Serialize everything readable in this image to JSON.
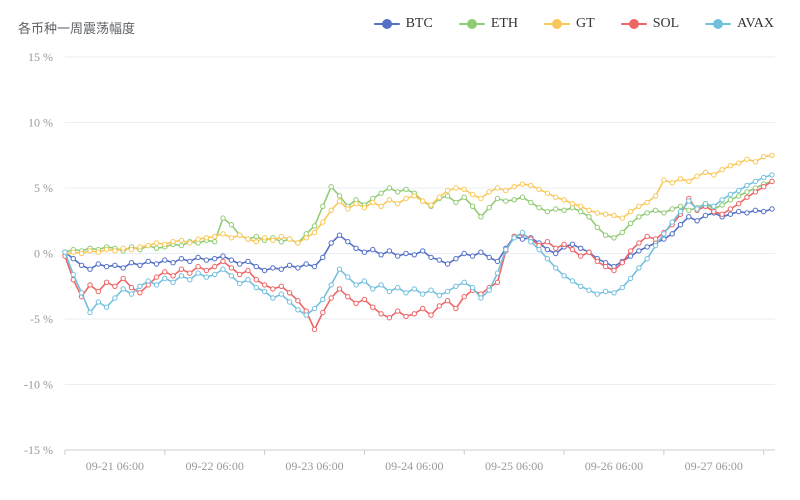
{
  "page": {
    "title": "各币种一周震荡幅度"
  },
  "style": {
    "title_color": "#5e6166",
    "legend_text_color": "#333333",
    "axis_label_color": "#999999",
    "grid_color": "#e9edf4",
    "axis_line_color": "#cccccc",
    "background": "#ffffff"
  },
  "chart_data": {
    "type": "line",
    "title": "各币种一周震荡幅度",
    "xlabel": "",
    "ylabel": "",
    "ylim": [
      -15,
      15
    ],
    "grid": true,
    "legend_position": "top",
    "marker_style": "hollow-circle",
    "y_tick_values": [
      15,
      10,
      5,
      0,
      -5,
      -10,
      -15
    ],
    "y_tick_labels": [
      "15 %",
      "10 %",
      "5 %",
      "0 %",
      "-5 %",
      "-10 %",
      "-15 %"
    ],
    "x_tick_labels": [
      "09-21 06:00",
      "09-22 06:00",
      "09-23 06:00",
      "09-24 06:00",
      "09-25 06:00",
      "09-26 06:00",
      "09-27 06:00"
    ],
    "x_label_indices": [
      6,
      18,
      30,
      42,
      54,
      66,
      78
    ],
    "x_unit": "2-hour intervals starting 09-20 18:00",
    "series": [
      {
        "name": "BTC",
        "color": "#5470c6",
        "values": [
          0.1,
          -0.4,
          -0.9,
          -1.2,
          -0.8,
          -1.0,
          -0.9,
          -1.1,
          -0.7,
          -0.9,
          -0.6,
          -0.8,
          -0.5,
          -0.7,
          -0.4,
          -0.6,
          -0.3,
          -0.5,
          -0.4,
          -0.2,
          -0.5,
          -0.8,
          -0.6,
          -1.0,
          -1.3,
          -1.1,
          -1.2,
          -0.9,
          -1.1,
          -0.8,
          -1.0,
          -0.3,
          0.8,
          1.4,
          0.9,
          0.4,
          0.1,
          0.3,
          -0.1,
          0.2,
          -0.2,
          0.0,
          -0.1,
          0.2,
          -0.3,
          -0.5,
          -0.8,
          -0.4,
          0.0,
          -0.2,
          0.1,
          -0.3,
          -0.6,
          0.4,
          1.3,
          1.1,
          1.2,
          0.8,
          0.3,
          0.0,
          0.5,
          0.7,
          0.4,
          0.1,
          -0.4,
          -0.7,
          -1.0,
          -0.6,
          -0.2,
          0.2,
          0.5,
          0.8,
          1.1,
          1.5,
          2.2,
          2.8,
          2.5,
          2.9,
          3.1,
          2.8,
          3.0,
          3.2,
          3.1,
          3.3,
          3.2,
          3.4
        ]
      },
      {
        "name": "ETH",
        "color": "#91cc75",
        "values": [
          0.1,
          0.3,
          0.2,
          0.4,
          0.3,
          0.5,
          0.4,
          0.2,
          0.5,
          0.3,
          0.6,
          0.4,
          0.5,
          0.7,
          0.6,
          0.9,
          0.8,
          1.0,
          0.9,
          2.7,
          2.2,
          1.4,
          1.1,
          1.3,
          1.0,
          1.2,
          0.9,
          1.1,
          0.8,
          1.5,
          2.1,
          3.6,
          5.1,
          4.4,
          3.6,
          4.1,
          3.7,
          4.2,
          4.6,
          5.0,
          4.7,
          4.9,
          4.6,
          4.0,
          3.6,
          4.2,
          4.4,
          3.9,
          4.3,
          3.6,
          2.8,
          3.5,
          4.2,
          4.0,
          4.1,
          4.3,
          3.9,
          3.5,
          3.2,
          3.4,
          3.3,
          3.5,
          3.2,
          2.8,
          2.0,
          1.4,
          1.2,
          1.6,
          2.3,
          2.8,
          3.1,
          3.3,
          3.1,
          3.4,
          3.6,
          3.3,
          3.5,
          3.8,
          3.4,
          3.7,
          4.1,
          4.4,
          4.7,
          5.0,
          5.3,
          5.5
        ]
      },
      {
        "name": "GT",
        "color": "#fac858",
        "values": [
          -0.1,
          0.1,
          0.0,
          0.2,
          0.1,
          0.3,
          0.2,
          0.4,
          0.3,
          0.5,
          0.6,
          0.8,
          0.7,
          0.9,
          1.0,
          0.8,
          1.1,
          1.2,
          1.3,
          1.5,
          1.2,
          1.4,
          1.1,
          0.9,
          1.2,
          1.0,
          1.3,
          1.1,
          0.8,
          1.2,
          1.6,
          2.4,
          3.3,
          4.0,
          3.4,
          3.8,
          3.5,
          3.9,
          3.6,
          4.1,
          3.8,
          4.2,
          4.4,
          4.0,
          3.7,
          4.3,
          4.8,
          5.0,
          4.9,
          4.5,
          4.2,
          4.7,
          5.0,
          4.8,
          5.1,
          5.3,
          5.2,
          4.9,
          4.6,
          4.3,
          4.1,
          3.8,
          3.6,
          3.3,
          3.1,
          3.0,
          2.9,
          2.7,
          3.2,
          3.6,
          3.9,
          4.4,
          5.6,
          5.4,
          5.7,
          5.5,
          5.9,
          6.2,
          6.0,
          6.4,
          6.7,
          6.9,
          7.2,
          7.0,
          7.4,
          7.5
        ]
      },
      {
        "name": "SOL",
        "color": "#ee6666",
        "values": [
          -0.2,
          -2.0,
          -3.3,
          -2.4,
          -2.9,
          -2.2,
          -2.5,
          -1.9,
          -2.6,
          -3.0,
          -2.4,
          -1.8,
          -1.4,
          -1.7,
          -1.2,
          -1.5,
          -1.0,
          -1.3,
          -1.0,
          -0.6,
          -1.1,
          -1.6,
          -1.3,
          -2.0,
          -2.4,
          -2.7,
          -2.5,
          -3.0,
          -3.6,
          -4.4,
          -5.8,
          -4.5,
          -3.4,
          -2.7,
          -3.3,
          -3.8,
          -3.5,
          -4.1,
          -4.6,
          -4.9,
          -4.4,
          -4.8,
          -4.6,
          -4.2,
          -4.7,
          -4.0,
          -3.6,
          -4.2,
          -3.3,
          -2.8,
          -3.1,
          -2.6,
          -2.2,
          0.2,
          1.3,
          1.5,
          1.1,
          0.6,
          0.9,
          0.4,
          0.7,
          0.3,
          -0.2,
          0.1,
          -0.6,
          -1.0,
          -1.3,
          -0.7,
          0.2,
          0.8,
          1.3,
          1.1,
          1.6,
          2.2,
          3.0,
          4.2,
          3.3,
          3.6,
          3.2,
          3.0,
          3.4,
          3.8,
          4.3,
          4.7,
          5.1,
          5.5
        ]
      },
      {
        "name": "AVAX",
        "color": "#73c0de",
        "values": [
          0.1,
          -1.6,
          -3.0,
          -4.5,
          -3.7,
          -4.1,
          -3.4,
          -2.7,
          -3.1,
          -2.5,
          -2.1,
          -2.4,
          -1.9,
          -2.2,
          -1.7,
          -2.0,
          -1.5,
          -1.8,
          -1.6,
          -1.2,
          -1.7,
          -2.3,
          -2.0,
          -2.6,
          -2.9,
          -3.4,
          -3.1,
          -3.7,
          -4.3,
          -4.7,
          -4.2,
          -3.5,
          -2.4,
          -1.2,
          -1.8,
          -2.4,
          -2.1,
          -2.7,
          -2.4,
          -2.9,
          -2.6,
          -3.0,
          -2.7,
          -3.1,
          -2.8,
          -3.2,
          -2.9,
          -2.5,
          -2.2,
          -2.6,
          -3.4,
          -2.8,
          -1.5,
          0.3,
          1.2,
          1.6,
          0.9,
          0.3,
          -0.4,
          -1.1,
          -1.7,
          -2.1,
          -2.5,
          -2.8,
          -3.1,
          -2.9,
          -3.0,
          -2.6,
          -1.9,
          -1.1,
          -0.4,
          0.6,
          1.5,
          2.4,
          3.2,
          4.0,
          3.4,
          3.8,
          3.6,
          4.1,
          4.5,
          4.8,
          5.2,
          5.5,
          5.8,
          6.0
        ]
      }
    ]
  }
}
